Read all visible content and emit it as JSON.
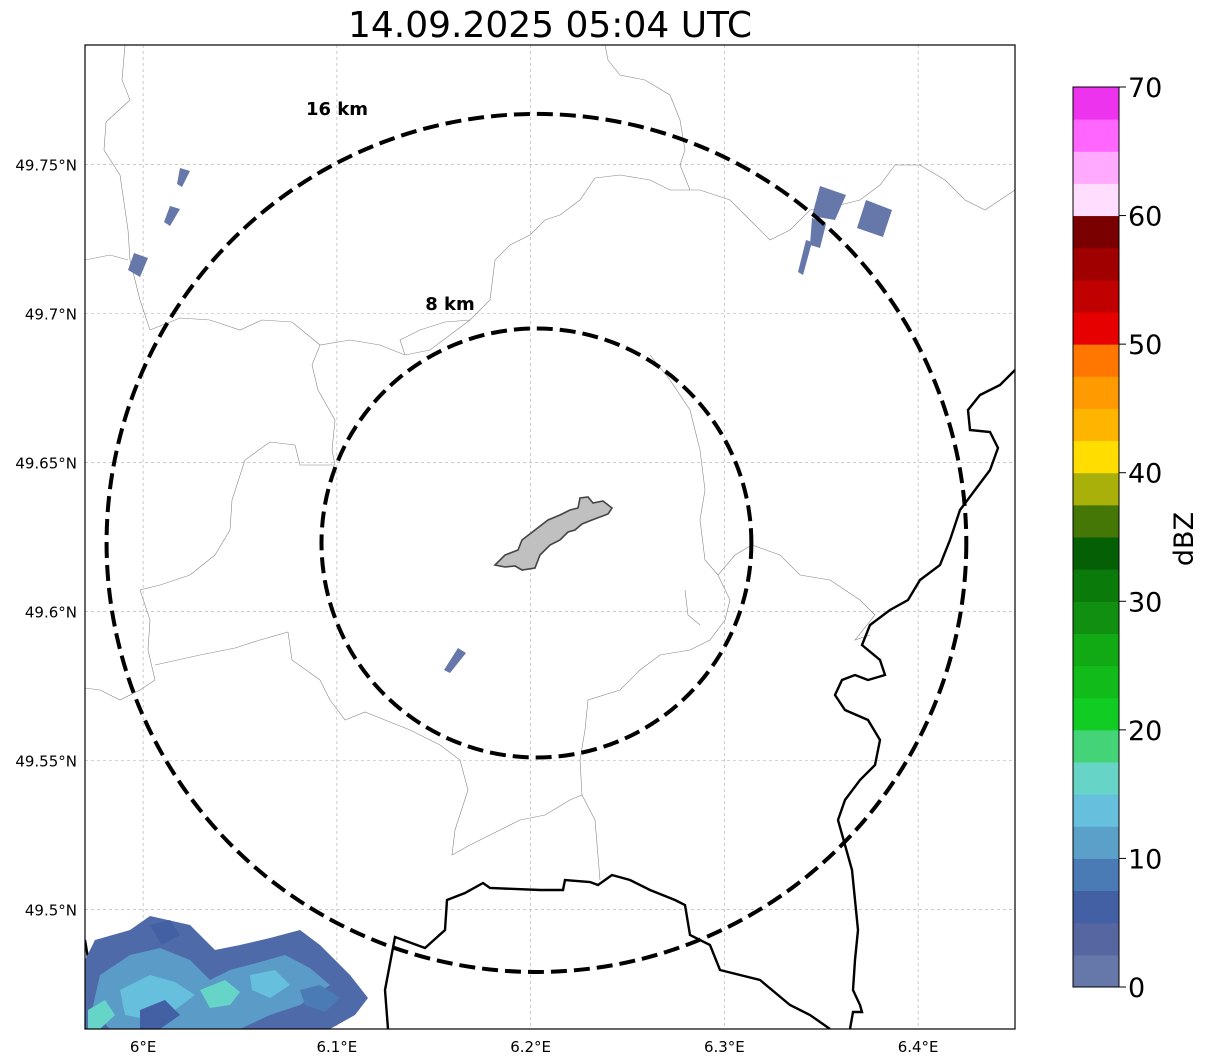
{
  "title": "14.09.2025 05:04 UTC",
  "map": {
    "lon_range": [
      5.97,
      6.45
    ],
    "lat_range": [
      49.46,
      49.79
    ],
    "lat_ticks": [
      {
        "value": 49.75,
        "label": "49.75°N"
      },
      {
        "value": 49.7,
        "label": "49.7°N"
      },
      {
        "value": 49.65,
        "label": "49.65°N"
      },
      {
        "value": 49.6,
        "label": "49.6°N"
      },
      {
        "value": 49.55,
        "label": "49.55°N"
      },
      {
        "value": 49.5,
        "label": "49.5°N"
      }
    ],
    "lon_ticks": [
      {
        "value": 6.0,
        "label": "6°E"
      },
      {
        "value": 6.1,
        "label": "6.1°E"
      },
      {
        "value": 6.2,
        "label": "6.2°E"
      },
      {
        "value": 6.3,
        "label": "6.3°E"
      },
      {
        "value": 6.4,
        "label": "6.4°E"
      }
    ],
    "gridlines": true,
    "radar_center": {
      "lon": 6.203,
      "lat": 49.623
    },
    "range_rings": [
      {
        "label": "8 km",
        "radius_km": 8
      },
      {
        "label": "16 km",
        "radius_km": 16
      }
    ]
  },
  "colorbar": {
    "label": "dBZ",
    "min": 0,
    "max": 70,
    "step": 2.5,
    "ticks": [
      "0",
      "10",
      "20",
      "30",
      "40",
      "50",
      "60",
      "70"
    ],
    "colors": [
      "#6677aa",
      "#5566a0",
      "#4460a5",
      "#4a7bb5",
      "#5aa0c8",
      "#66bfdd",
      "#66d5c8",
      "#44d477",
      "#11cc22",
      "#11bb1a",
      "#11aa15",
      "#118f11",
      "#0a7a0a",
      "#055f05",
      "#447705",
      "#aab00a",
      "#ffdd00",
      "#ffb500",
      "#ff9a00",
      "#ff7700",
      "#e60000",
      "#c00000",
      "#a00000",
      "#7a0000",
      "#ffddff",
      "#ffaaff",
      "#ff66ff",
      "#ee33ee"
    ]
  }
}
